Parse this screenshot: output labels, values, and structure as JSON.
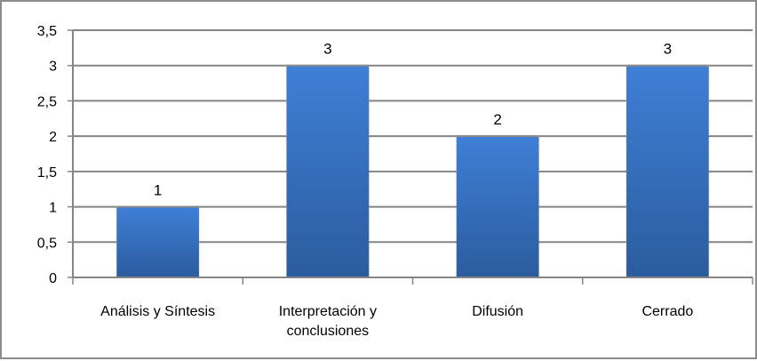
{
  "chart_data": {
    "type": "bar",
    "categories": [
      [
        "Análisis y Síntesis"
      ],
      [
        "Interpretación y",
        "conclusiones"
      ],
      [
        "Difusión"
      ],
      [
        "Cerrado"
      ]
    ],
    "values": [
      1,
      3,
      2,
      3
    ],
    "data_labels": [
      "1",
      "3",
      "2",
      "3"
    ],
    "y_ticks": [
      "0",
      "0,5",
      "1",
      "1,5",
      "2",
      "2,5",
      "3",
      "3,5"
    ],
    "ylim": [
      0,
      3.5
    ],
    "title": "",
    "xlabel": "",
    "ylabel": "",
    "grid": true,
    "legend": "none",
    "colors": {
      "bar_top": "#3f7fd6",
      "bar_bottom": "#2b5c9e",
      "grid": "#858585",
      "axis": "#858585",
      "bar_top_edge": "#8a8a8a"
    }
  }
}
